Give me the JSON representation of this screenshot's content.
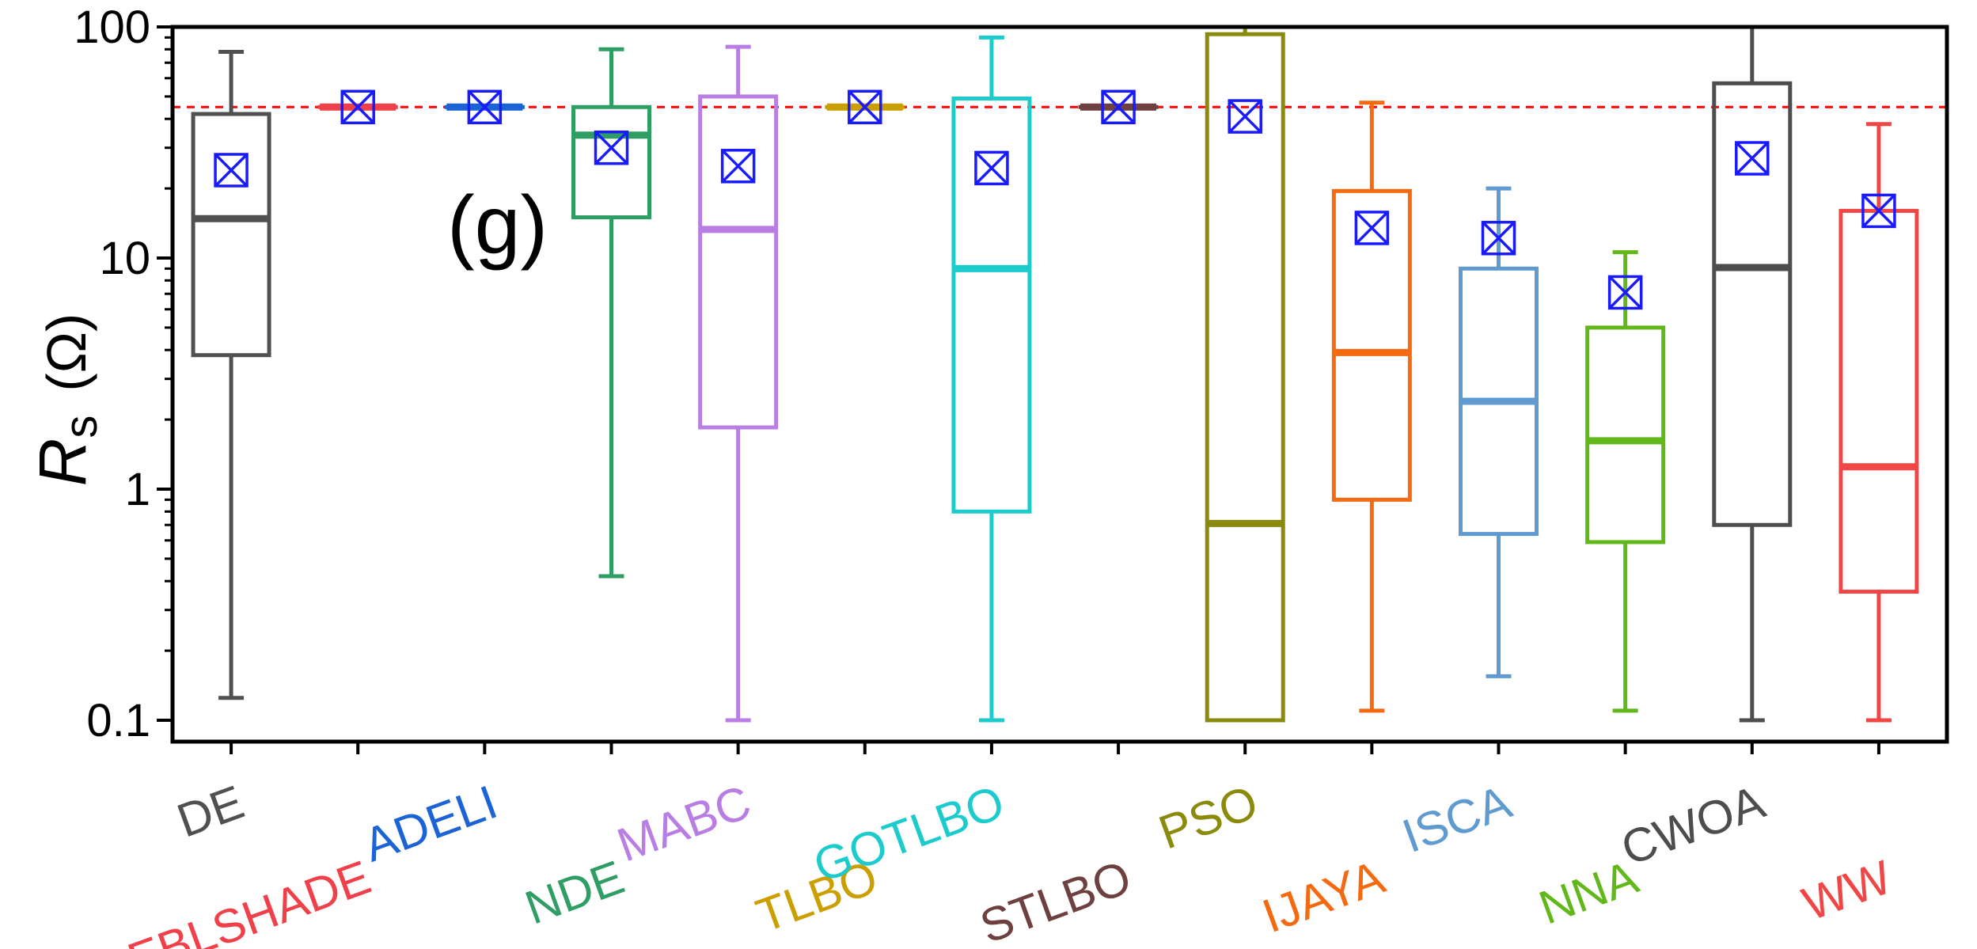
{
  "chart_data": {
    "type": "box",
    "panel_label": "(g)",
    "ylabel": {
      "symbol": "R",
      "subscript": "s",
      "unit": "(Ω)"
    },
    "yscale": "log",
    "ylim": [
      0.08,
      100
    ],
    "yticks": [
      {
        "value": 0.1,
        "label": "0.1"
      },
      {
        "value": 1,
        "label": "1"
      },
      {
        "value": 10,
        "label": "10"
      },
      {
        "value": 100,
        "label": "100"
      }
    ],
    "reference_line": {
      "value": 45,
      "color": "#ff0000",
      "style": "dashed"
    },
    "series": [
      {
        "name": "DE",
        "color": "#505050",
        "whisker_low": 0.125,
        "q1": 3.8,
        "median": 14.8,
        "q3": 42,
        "whisker_high": 78,
        "mean": 24
      },
      {
        "name": "EBLSHADE",
        "color": "#f0404a",
        "whisker_low": 45,
        "q1": 45,
        "median": 45,
        "q3": 45,
        "whisker_high": 45,
        "mean": 45
      },
      {
        "name": "ADELI",
        "color": "#1c63d6",
        "whisker_low": 45,
        "q1": 45,
        "median": 45,
        "q3": 45,
        "whisker_high": 45,
        "mean": 45
      },
      {
        "name": "NDE",
        "color": "#2e9e64",
        "whisker_low": 0.42,
        "q1": 15,
        "median": 34,
        "q3": 45,
        "whisker_high": 80,
        "mean": 30
      },
      {
        "name": "MABC",
        "color": "#b87ee3",
        "whisker_low": 0.1,
        "q1": 1.85,
        "median": 13.3,
        "q3": 50,
        "whisker_high": 82,
        "mean": 25
      },
      {
        "name": "TLBO",
        "color": "#cc9f00",
        "whisker_low": 45,
        "q1": 45,
        "median": 45,
        "q3": 45,
        "whisker_high": 45,
        "mean": 45
      },
      {
        "name": "GOTLBO",
        "color": "#1ccbcb",
        "whisker_low": 0.1,
        "q1": 0.8,
        "median": 9,
        "q3": 49,
        "whisker_high": 90,
        "mean": 24.5
      },
      {
        "name": "STLBO",
        "color": "#6e4040",
        "whisker_low": 45,
        "q1": 45,
        "median": 45,
        "q3": 45,
        "whisker_high": 45,
        "mean": 45
      },
      {
        "name": "PSO",
        "color": "#8a8a0c",
        "whisker_low": 0.1,
        "q1": 0.1,
        "median": 0.71,
        "q3": 93,
        "whisker_high": 100,
        "mean": 41
      },
      {
        "name": "IJAYA",
        "color": "#f56a10",
        "whisker_low": 0.11,
        "q1": 0.9,
        "median": 3.9,
        "q3": 19.5,
        "whisker_high": 47,
        "mean": 13.5
      },
      {
        "name": "ISCA",
        "color": "#5f9bd0",
        "whisker_low": 0.155,
        "q1": 0.64,
        "median": 2.4,
        "q3": 9,
        "whisker_high": 20,
        "mean": 12.2
      },
      {
        "name": "NNA",
        "color": "#62b81b",
        "whisker_low": 0.11,
        "q1": 0.59,
        "median": 1.62,
        "q3": 5,
        "whisker_high": 10.6,
        "mean": 7.1
      },
      {
        "name": "CWOA",
        "color": "#4d4d4d",
        "whisker_low": 0.1,
        "q1": 0.7,
        "median": 9.1,
        "q3": 57,
        "whisker_high": 100,
        "mean": 27
      },
      {
        "name": "WW",
        "color": "#f04646",
        "whisker_low": 0.1,
        "q1": 0.36,
        "median": 1.25,
        "q3": 16,
        "whisker_high": 38,
        "mean": 16
      }
    ]
  }
}
